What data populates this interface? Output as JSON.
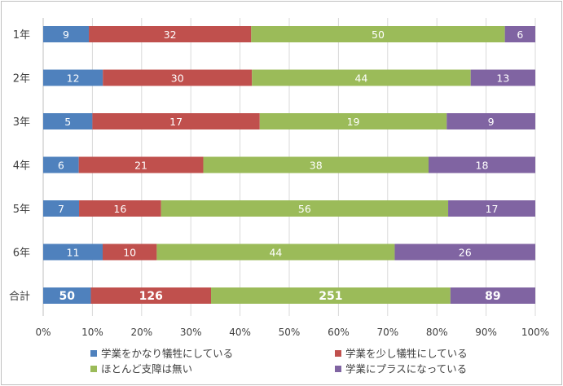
{
  "chart_data": {
    "type": "bar",
    "orientation": "horizontal",
    "stacked": "percent",
    "categories": [
      "1年",
      "2年",
      "3年",
      "4年",
      "5年",
      "6年",
      "合計"
    ],
    "series": [
      {
        "name": "学業をかなり犠牲にしている",
        "color": "#4f81bd",
        "values": [
          9,
          12,
          5,
          6,
          7,
          11,
          50
        ]
      },
      {
        "name": "学業を少し犠牲にしている",
        "color": "#c0504d",
        "values": [
          32,
          30,
          17,
          21,
          16,
          10,
          126
        ]
      },
      {
        "name": "ほとんど支障は無い",
        "color": "#9bbb59",
        "values": [
          50,
          44,
          19,
          38,
          56,
          44,
          251
        ]
      },
      {
        "name": "学業にプラスになっている",
        "color": "#8064a2",
        "values": [
          6,
          13,
          9,
          18,
          17,
          26,
          89
        ]
      }
    ],
    "x_ticks": [
      "0%",
      "10%",
      "20%",
      "30%",
      "40%",
      "50%",
      "60%",
      "70%",
      "80%",
      "90%",
      "100%"
    ],
    "xlim": [
      0,
      100
    ],
    "grid": true,
    "legend_position": "bottom"
  }
}
